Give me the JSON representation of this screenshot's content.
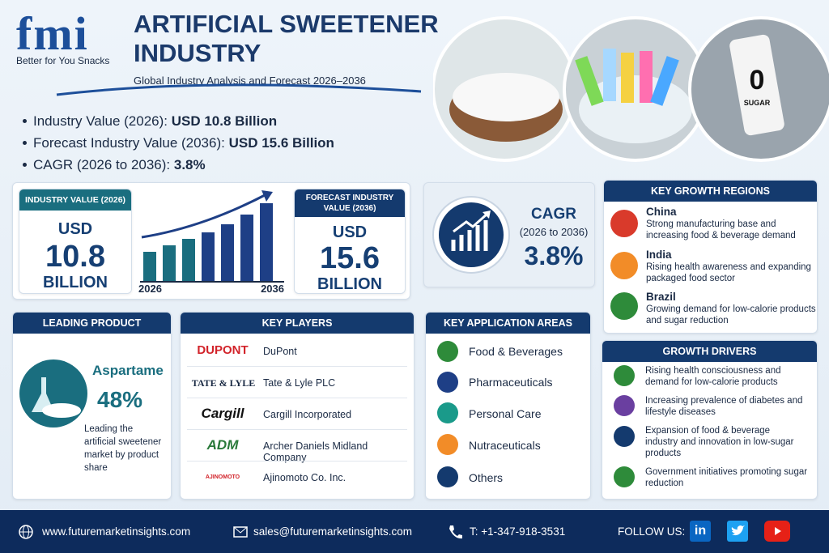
{
  "header": {
    "logo": "fmi",
    "tagline": "Better for You Snacks",
    "title_line1": "ARTIFICIAL SWEETENER",
    "title_line2": "INDUSTRY",
    "subtitle": "Global Industry Analysis and Forecast 2026–2036"
  },
  "photo_can": {
    "big": "0",
    "small": "SUGAR"
  },
  "highlights": [
    {
      "label": "Industry Value (2026): ",
      "value": "USD 10.8 Billion"
    },
    {
      "label": "Forecast Industry Value (2036): ",
      "value": "USD 15.6 Billion"
    },
    {
      "label": "CAGR (2026 to 2036): ",
      "value": "3.8%"
    }
  ],
  "industry_value": {
    "heading": "INDUSTRY VALUE (2026)",
    "currency": "USD",
    "amount": "10.8",
    "unit": "BILLION",
    "start_year": "2026",
    "end_year": "2036"
  },
  "forecast_value": {
    "heading": "FORECAST INDUSTRY VALUE (2036)",
    "currency": "USD",
    "amount": "15.6",
    "unit": "BILLION"
  },
  "cagr": {
    "heading": "CAGR",
    "period": "(2026 to 2036)",
    "value": "3.8%"
  },
  "regions": {
    "heading": "KEY GROWTH REGIONS",
    "items": [
      {
        "name": "China",
        "text": "Strong manufacturing base and increasing food & beverage demand"
      },
      {
        "name": "India",
        "text": "Rising health awareness and expanding packaged food sector"
      },
      {
        "name": "Brazil",
        "text": "Growing demand for low-calorie products and sugar reduction"
      }
    ]
  },
  "leading_product": {
    "heading": "LEADING PRODUCT",
    "name": "Aspartame",
    "share": "48%",
    "text": "Leading the artificial sweetener market by product share"
  },
  "players": {
    "heading": "KEY PLAYERS",
    "items": [
      {
        "logo": "DUPONT",
        "name": "DuPont"
      },
      {
        "logo": "TATE & LYLE",
        "name": "Tate & Lyle PLC"
      },
      {
        "logo": "Cargill",
        "name": "Cargill Incorporated"
      },
      {
        "logo": "ADM",
        "name": "Archer Daniels Midland Company"
      },
      {
        "logo": "AJINOMOTO",
        "name": "Ajinomoto Co. Inc."
      }
    ]
  },
  "applications": {
    "heading": "KEY APPLICATION AREAS",
    "items": [
      "Food & Beverages",
      "Pharmaceuticals",
      "Personal Care",
      "Nutraceuticals",
      "Others"
    ]
  },
  "drivers": {
    "heading": "GROWTH DRIVERS",
    "items": [
      "Rising health consciousness and demand for low-calorie products",
      "Increasing prevalence of diabetes and lifestyle diseases",
      "Expansion of food & beverage industry and innovation in low-sugar products",
      "Government initiatives promoting sugar reduction"
    ]
  },
  "footer": {
    "website": "www.futuremarketinsights.com",
    "email": "sales@futuremarketinsights.com",
    "phone": "T: +1-347-918-3531",
    "follow": "FOLLOW US:",
    "linkedin": "in"
  }
}
